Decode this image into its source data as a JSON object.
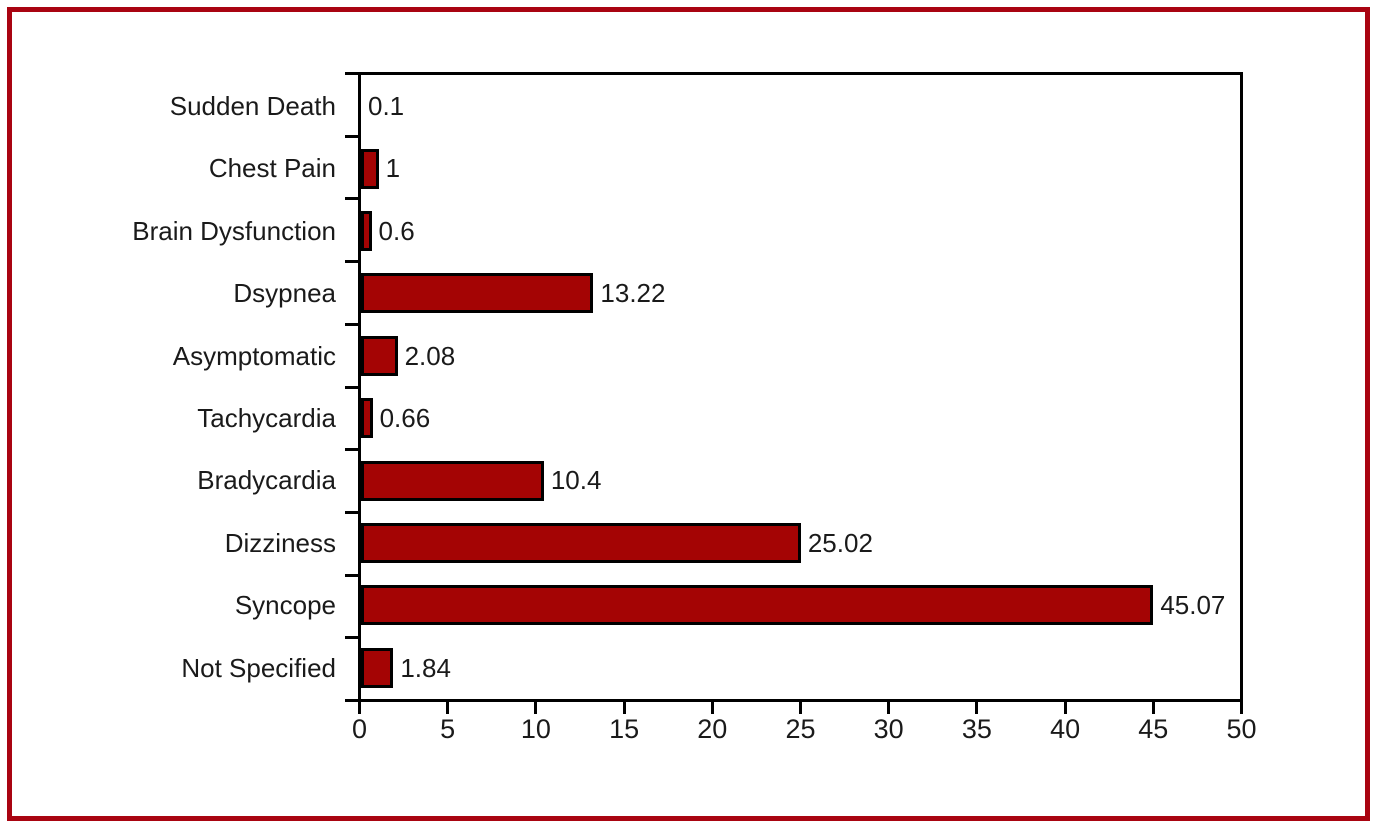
{
  "figure": {
    "background": "#FFFFFF",
    "border_color": "#A90411"
  },
  "chart_data": {
    "type": "bar",
    "orientation": "horizontal",
    "title": "",
    "xlabel": "",
    "ylabel": "",
    "categories": [
      "Sudden Death",
      "Chest Pain",
      "Brain Dysfunction",
      "Dsypnea",
      "Asymptomatic",
      "Tachycardia",
      "Bradycardia",
      "Dizziness",
      "Syncope",
      "Not Specified"
    ],
    "values": [
      0.1,
      1,
      0.6,
      13.22,
      2.08,
      0.66,
      10.4,
      25.02,
      45.07,
      1.84
    ],
    "value_labels": [
      "0.1",
      "1",
      "0.6",
      "13.22",
      "2.08",
      "0.66",
      "10.4",
      "25.02",
      "45.07",
      "1.84"
    ],
    "xlim": [
      0,
      50
    ],
    "x_ticks": [
      "0",
      "5",
      "10",
      "15",
      "20",
      "25",
      "30",
      "35",
      "40",
      "45",
      "50"
    ],
    "bar_color": "#A40404",
    "bar_border_color": "#000000",
    "axis_color": "#000000",
    "grid": false,
    "legend": "none",
    "value_label_position": "right-of-bar"
  }
}
